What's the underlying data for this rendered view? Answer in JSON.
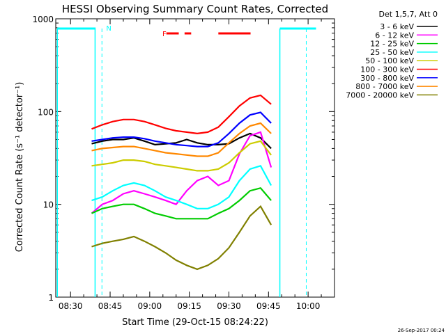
{
  "chart_data": {
    "type": "line",
    "title": "HESSI Observing Summary Count Rates, Corrected",
    "xlabel": "Start Time (29-Oct-15 08:24:22)",
    "ylabel": "Corrected Count Rate (s⁻¹ detector⁻¹)",
    "y_scale": "log",
    "ylim": [
      1,
      1000
    ],
    "xlim_minutes": [
      504.4,
      610
    ],
    "x_ticks": [
      {
        "label": "08:30",
        "minutes": 510
      },
      {
        "label": "08:45",
        "minutes": 525
      },
      {
        "label": "09:00",
        "minutes": 540
      },
      {
        "label": "09:15",
        "minutes": 555
      },
      {
        "label": "09:30",
        "minutes": 570
      },
      {
        "label": "09:45",
        "minutes": 585
      },
      {
        "label": "10:00",
        "minutes": 600
      }
    ],
    "y_ticks": [
      {
        "label": "1",
        "value": 1
      },
      {
        "label": "10",
        "value": 10
      },
      {
        "label": "100",
        "value": 100
      },
      {
        "label": "1000",
        "value": 1000
      }
    ],
    "legend_header": "Det 1,5,7, Att 0",
    "legend_position": "right",
    "series": [
      {
        "name": "3 - 6 keV",
        "color": "#000000",
        "x": [
          518,
          522,
          526,
          530,
          534,
          538,
          542,
          546,
          550,
          554,
          558,
          562,
          566,
          570,
          574,
          578,
          582,
          586
        ],
        "y": [
          45,
          48,
          50,
          50,
          52,
          48,
          44,
          45,
          46,
          50,
          46,
          44,
          44,
          45,
          52,
          58,
          52,
          40
        ]
      },
      {
        "name": "6 - 12 keV",
        "color": "#ff00ff",
        "x": [
          518,
          522,
          526,
          530,
          534,
          538,
          542,
          546,
          550,
          554,
          558,
          562,
          566,
          570,
          574,
          578,
          582,
          586
        ],
        "y": [
          8,
          10,
          11,
          13,
          14,
          13,
          12,
          11,
          10,
          14,
          18,
          20,
          16,
          18,
          35,
          55,
          60,
          25
        ]
      },
      {
        "name": "12 - 25 keV",
        "color": "#00cc00",
        "x": [
          518,
          522,
          526,
          530,
          534,
          538,
          542,
          546,
          550,
          554,
          558,
          562,
          566,
          570,
          574,
          578,
          582,
          586
        ],
        "y": [
          8,
          9,
          9.5,
          10,
          10,
          9,
          8,
          7.5,
          7,
          7,
          7,
          7,
          8,
          9,
          11,
          14,
          15,
          11
        ]
      },
      {
        "name": "25 - 50 keV",
        "color": "#00ffff",
        "x": [
          518,
          522,
          526,
          530,
          534,
          538,
          542,
          546,
          550,
          554,
          558,
          562,
          566,
          570,
          574,
          578,
          582,
          586
        ],
        "y": [
          11,
          12,
          14,
          16,
          17,
          16,
          14,
          12,
          11,
          10,
          9,
          9,
          10,
          12,
          18,
          24,
          26,
          16
        ]
      },
      {
        "name": "50 - 100 keV",
        "color": "#cccc00",
        "x": [
          518,
          522,
          526,
          530,
          534,
          538,
          542,
          546,
          550,
          554,
          558,
          562,
          566,
          570,
          574,
          578,
          582,
          586
        ],
        "y": [
          26,
          27,
          28,
          30,
          30,
          29,
          27,
          26,
          25,
          24,
          23,
          23,
          24,
          28,
          36,
          45,
          48,
          34
        ]
      },
      {
        "name": "100 - 300 keV",
        "color": "#ff0000",
        "x": [
          518,
          522,
          526,
          530,
          534,
          538,
          542,
          546,
          550,
          554,
          558,
          562,
          566,
          570,
          574,
          578,
          582,
          586
        ],
        "y": [
          65,
          72,
          78,
          82,
          82,
          78,
          72,
          66,
          62,
          60,
          58,
          60,
          68,
          88,
          115,
          140,
          150,
          120
        ]
      },
      {
        "name": "300 - 800 keV",
        "color": "#0000ff",
        "x": [
          518,
          522,
          526,
          530,
          534,
          538,
          542,
          546,
          550,
          554,
          558,
          562,
          566,
          570,
          574,
          578,
          582,
          586
        ],
        "y": [
          48,
          50,
          52,
          53,
          53,
          51,
          48,
          46,
          44,
          43,
          42,
          42,
          46,
          58,
          75,
          92,
          98,
          75
        ]
      },
      {
        "name": "800 - 7000 keV",
        "color": "#ff8800",
        "x": [
          518,
          522,
          526,
          530,
          534,
          538,
          542,
          546,
          550,
          554,
          558,
          562,
          566,
          570,
          574,
          578,
          582,
          586
        ],
        "y": [
          38,
          40,
          41,
          42,
          42,
          40,
          38,
          36,
          35,
          34,
          33,
          33,
          36,
          46,
          58,
          70,
          75,
          58
        ]
      },
      {
        "name": "7000 - 20000 keV",
        "color": "#808000",
        "x": [
          518,
          522,
          526,
          530,
          534,
          538,
          542,
          546,
          550,
          554,
          558,
          562,
          566,
          570,
          574,
          578,
          582,
          586
        ],
        "y": [
          3.5,
          3.8,
          4,
          4.2,
          4.5,
          4,
          3.5,
          3,
          2.5,
          2.2,
          2,
          2.2,
          2.6,
          3.4,
          5,
          7.5,
          9.5,
          6
        ]
      }
    ],
    "annotations": [
      {
        "label": "N",
        "color": "#00ffff"
      },
      {
        "label": "F",
        "color": "#ff0000"
      }
    ],
    "corner_text": "26-Sep-2017 00:24"
  }
}
